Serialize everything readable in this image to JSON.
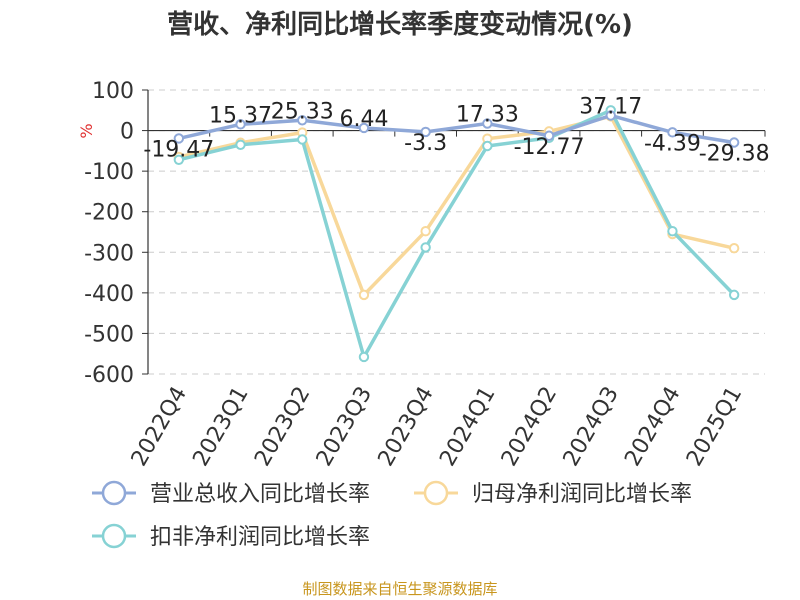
{
  "title": "营收、净利同比增长率季度变动情况(%)",
  "source": "制图数据来自恒生聚源数据库",
  "chart_data": {
    "type": "line",
    "title": "营收、净利同比增长率季度变动情况(%)",
    "ylabel": "%",
    "xlabel": "",
    "ylim": [
      -600,
      100
    ],
    "yticks": [
      100,
      0,
      -100,
      -200,
      -300,
      -400,
      -500,
      -600
    ],
    "categories": [
      "2022Q4",
      "2023Q1",
      "2023Q2",
      "2023Q3",
      "2023Q4",
      "2024Q1",
      "2024Q2",
      "2024Q3",
      "2024Q4",
      "2025Q1"
    ],
    "grid": true,
    "legend": "bottom",
    "series": [
      {
        "name": "营业总收入同比增长率",
        "color": "#8fa8d8",
        "values": [
          -19.47,
          15.37,
          25.33,
          6.44,
          -3.3,
          17.33,
          -12.77,
          37.17,
          -4.39,
          -29.38
        ],
        "labels": [
          "-19.47",
          "15.37",
          "25.33",
          "6.44",
          "-3.3",
          "17.33",
          "-12.77",
          "37.17",
          "-4.39",
          "-29.38"
        ]
      },
      {
        "name": "归母净利润同比增长率",
        "color": "#f8d89a",
        "values": [
          -65,
          -30,
          -5,
          -405,
          -248,
          -20,
          -2,
          35,
          -255,
          -290
        ]
      },
      {
        "name": "扣非净利润同比增长率",
        "color": "#86d2d4",
        "values": [
          -72,
          -35,
          -22,
          -558,
          -288,
          -38,
          -18,
          50,
          -248,
          -405
        ]
      }
    ]
  }
}
